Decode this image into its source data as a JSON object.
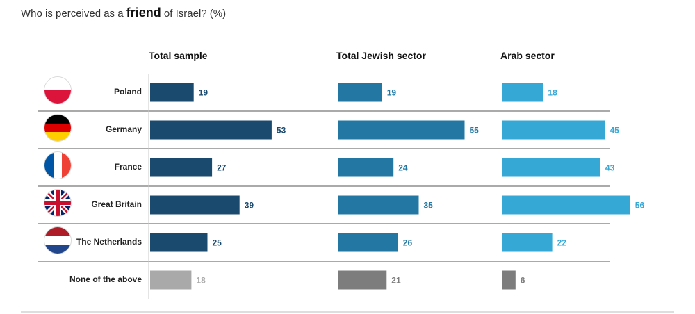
{
  "title": {
    "prefix": "Who is perceived as a ",
    "emphasis": "friend",
    "suffix": " of Israel? (%)"
  },
  "colors": {
    "total": "#1a4a6e",
    "jewish": "#2278a3",
    "arab": "#36a8d6",
    "none_total": "#a9a9a9",
    "none_other": "#7d7d7d",
    "divider": "#555555"
  },
  "chart_data": {
    "type": "bar",
    "orientation": "horizontal",
    "title": "Who is perceived as a friend of Israel? (%)",
    "categories": [
      "Poland",
      "Germany",
      "France",
      "Great Britain",
      "The Netherlands",
      "None of the above"
    ],
    "flags": [
      "poland-flag",
      "germany-flag",
      "france-flag",
      "great-britain-flag",
      "netherlands-flag",
      null
    ],
    "series": [
      {
        "name": "Total sample",
        "values": [
          19,
          53,
          27,
          39,
          25,
          18
        ]
      },
      {
        "name": "Total Jewish sector",
        "values": [
          19,
          55,
          24,
          35,
          26,
          21
        ]
      },
      {
        "name": "Arab sector",
        "values": [
          18,
          45,
          43,
          56,
          22,
          6
        ]
      }
    ],
    "xlim": [
      0,
      100
    ],
    "unit": "%"
  }
}
